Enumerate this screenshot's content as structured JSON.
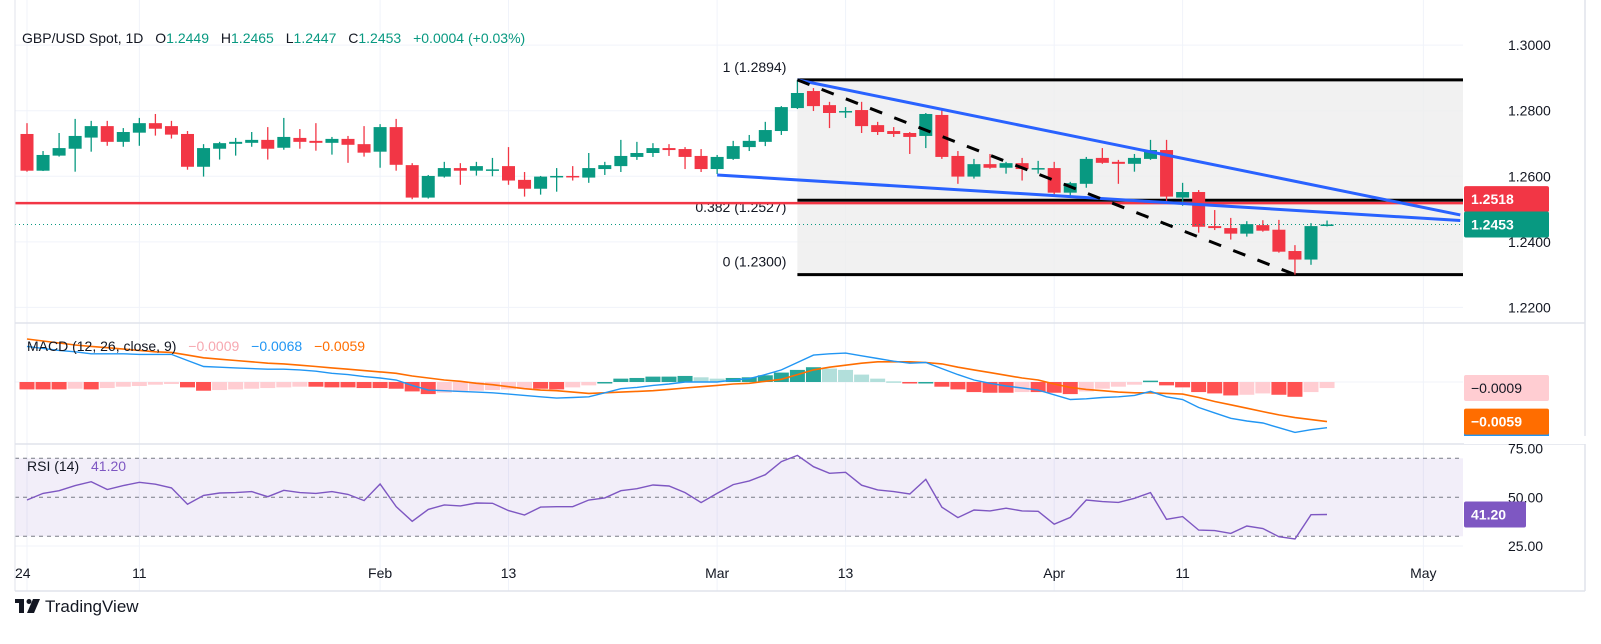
{
  "header": {
    "symbol": "GBP/USD Spot, 1D",
    "o_label": "O",
    "o": "1.2449",
    "h_label": "H",
    "h": "1.2465",
    "l_label": "L",
    "l": "1.2447",
    "c_label": "C",
    "c": "1.2453",
    "change": "+0.0004 (+0.03%)"
  },
  "colors": {
    "up": "#089981",
    "down": "#F23645",
    "macd": "#2196F3",
    "signal": "#FF6D00",
    "hist_up_strong": "#26A69A",
    "hist_up_weak": "#B2DFDB",
    "hist_down_strong": "#FF5252",
    "hist_down_weak": "#FFCDD2",
    "rsi": "#7E57C2",
    "trendline": "#2962FF",
    "support_line": "#F23645"
  },
  "chart_data": [
    {
      "type": "candlestick",
      "title": "GBP/USD Spot, 1D",
      "y_range": [
        1.22,
        1.3
      ],
      "y_ticks": [
        "1.3000",
        "1.2800",
        "1.2600",
        "1.2400",
        "1.2200"
      ],
      "x_ticks": [
        {
          "label": "24",
          "at_bar": 0
        },
        {
          "label": "11",
          "at_bar": 7
        },
        {
          "label": "Feb",
          "at_bar": 22
        },
        {
          "label": "13",
          "at_bar": 30
        },
        {
          "label": "Mar",
          "at_bar": 43
        },
        {
          "label": "13",
          "at_bar": 51
        },
        {
          "label": "Apr",
          "at_bar": 64
        },
        {
          "label": "11",
          "at_bar": 72
        },
        {
          "label": "May",
          "at_bar": 87
        }
      ],
      "ohlc_columns": [
        "open",
        "high",
        "low",
        "close"
      ],
      "ohlc": [
        [
          1.2729,
          1.2762,
          1.2614,
          1.2617
        ],
        [
          1.2617,
          1.2677,
          1.2616,
          1.2665
        ],
        [
          1.2663,
          1.2732,
          1.266,
          1.2686
        ],
        [
          1.2684,
          1.2775,
          1.2614,
          1.2723
        ],
        [
          1.2718,
          1.2769,
          1.2675,
          1.2753
        ],
        [
          1.2753,
          1.2769,
          1.2693,
          1.2705
        ],
        [
          1.2705,
          1.2747,
          1.269,
          1.2735
        ],
        [
          1.2733,
          1.2778,
          1.2693,
          1.2762
        ],
        [
          1.2762,
          1.279,
          1.2724,
          1.2745
        ],
        [
          1.2753,
          1.2769,
          1.2715,
          1.2727
        ],
        [
          1.2729,
          1.2738,
          1.262,
          1.2629
        ],
        [
          1.2629,
          1.2698,
          1.2599,
          1.2686
        ],
        [
          1.2684,
          1.2705,
          1.2651,
          1.2701
        ],
        [
          1.2699,
          1.2717,
          1.2663,
          1.2705
        ],
        [
          1.2702,
          1.2735,
          1.269,
          1.2711
        ],
        [
          1.2711,
          1.275,
          1.2651,
          1.2684
        ],
        [
          1.2687,
          1.2778,
          1.2681,
          1.272
        ],
        [
          1.2717,
          1.2744,
          1.2684,
          1.2705
        ],
        [
          1.2708,
          1.2762,
          1.2678,
          1.2702
        ],
        [
          1.2702,
          1.272,
          1.2666,
          1.2714
        ],
        [
          1.2714,
          1.2723,
          1.2641,
          1.2696
        ],
        [
          1.2698,
          1.2753,
          1.266,
          1.2672
        ],
        [
          1.2675,
          1.2759,
          1.2626,
          1.275
        ],
        [
          1.275,
          1.2775,
          1.2617,
          1.2635
        ],
        [
          1.2634,
          1.264,
          1.253,
          1.2535
        ],
        [
          1.2535,
          1.2604,
          1.2532,
          1.2601
        ],
        [
          1.2599,
          1.2644,
          1.2596,
          1.2625
        ],
        [
          1.2625,
          1.264,
          1.2574,
          1.2617
        ],
        [
          1.2617,
          1.2644,
          1.2602,
          1.2631
        ],
        [
          1.2617,
          1.2656,
          1.26,
          1.2621
        ],
        [
          1.2631,
          1.2689,
          1.2574,
          1.2587
        ],
        [
          1.2589,
          1.2613,
          1.2538,
          1.2562
        ],
        [
          1.2562,
          1.2601,
          1.2544,
          1.2599
        ],
        [
          1.2597,
          1.2625,
          1.2553,
          1.2601
        ],
        [
          1.2601,
          1.2631,
          1.2587,
          1.2597
        ],
        [
          1.2596,
          1.2671,
          1.258,
          1.2625
        ],
        [
          1.2622,
          1.2644,
          1.2604,
          1.2634
        ],
        [
          1.2631,
          1.2711,
          1.2613,
          1.2662
        ],
        [
          1.2659,
          1.2705,
          1.265,
          1.2671
        ],
        [
          1.2671,
          1.2701,
          1.2659,
          1.2686
        ],
        [
          1.2686,
          1.2698,
          1.2662,
          1.268
        ],
        [
          1.2683,
          1.2689,
          1.2622,
          1.2659
        ],
        [
          1.2662,
          1.2683,
          1.2613,
          1.2622
        ],
        [
          1.2622,
          1.2665,
          1.2607,
          1.2659
        ],
        [
          1.2653,
          1.2708,
          1.265,
          1.2692
        ],
        [
          1.2689,
          1.2726,
          1.2677,
          1.2708
        ],
        [
          1.2705,
          1.2766,
          1.2692,
          1.2741
        ],
        [
          1.2738,
          1.2814,
          1.2726,
          1.2811
        ],
        [
          1.2808,
          1.2894,
          1.2805,
          1.2854
        ],
        [
          1.286,
          1.2869,
          1.2799,
          1.2814
        ],
        [
          1.2817,
          1.2827,
          1.2747,
          1.2793
        ],
        [
          1.2796,
          1.2811,
          1.2778,
          1.2799
        ],
        [
          1.2802,
          1.2827,
          1.2732,
          1.2753
        ],
        [
          1.2756,
          1.2766,
          1.2726,
          1.2735
        ],
        [
          1.2738,
          1.275,
          1.272,
          1.2729
        ],
        [
          1.2732,
          1.2735,
          1.2668,
          1.272
        ],
        [
          1.2723,
          1.2793,
          1.2686,
          1.279
        ],
        [
          1.2787,
          1.2805,
          1.2653,
          1.2659
        ],
        [
          1.2662,
          1.2677,
          1.2577,
          1.2599
        ],
        [
          1.2599,
          1.2653,
          1.2593,
          1.2637
        ],
        [
          1.2637,
          1.2668,
          1.2623,
          1.2626
        ],
        [
          1.2626,
          1.2644,
          1.2608,
          1.264
        ],
        [
          1.264,
          1.2656,
          1.2587,
          1.2622
        ],
        [
          1.2622,
          1.2647,
          1.2608,
          1.2625
        ],
        [
          1.2625,
          1.2644,
          1.2538,
          1.255
        ],
        [
          1.255,
          1.2583,
          1.2541,
          1.2579
        ],
        [
          1.2577,
          1.2659,
          1.2565,
          1.2653
        ],
        [
          1.2656,
          1.2686,
          1.2638,
          1.2641
        ],
        [
          1.2644,
          1.265,
          1.2577,
          1.2638
        ],
        [
          1.2638,
          1.2668,
          1.2614,
          1.2656
        ],
        [
          1.2653,
          1.2711,
          1.265,
          1.268
        ],
        [
          1.268,
          1.2711,
          1.2522,
          1.2538
        ],
        [
          1.2535,
          1.258,
          1.251,
          1.2552
        ],
        [
          1.2552,
          1.2558,
          1.2428,
          1.2446
        ],
        [
          1.2448,
          1.2497,
          1.2436,
          1.2442
        ],
        [
          1.2442,
          1.2473,
          1.2407,
          1.2425
        ],
        [
          1.2425,
          1.2463,
          1.2416,
          1.2454
        ],
        [
          1.2451,
          1.2466,
          1.2431,
          1.2434
        ],
        [
          1.2437,
          1.2467,
          1.2367,
          1.237
        ],
        [
          1.2372,
          1.239,
          1.23,
          1.2346
        ],
        [
          1.2346,
          1.2457,
          1.233,
          1.2448
        ],
        [
          1.2449,
          1.2465,
          1.2447,
          1.2453
        ]
      ],
      "fibonacci": {
        "start_bar": 48,
        "levels": [
          {
            "ratio": "1",
            "price": 1.2894,
            "label": "1 (1.2894)"
          },
          {
            "ratio": "0.382",
            "price": 1.2527,
            "label": "0.382 (1.2527)"
          },
          {
            "ratio": "0",
            "price": 1.23,
            "label": "0 (1.2300)"
          }
        ]
      },
      "horizontal_line": {
        "price": 1.2518,
        "label": "1.2518"
      },
      "last_price": {
        "price": 1.2453,
        "label": "1.2453"
      },
      "trendlines": [
        {
          "name": "upper",
          "style": "solid",
          "from": [
            48,
            1.2894
          ],
          "to": [
            89.3,
            1.2482
          ]
        },
        {
          "name": "lower",
          "style": "solid",
          "from": [
            43,
            1.2604
          ],
          "to": [
            89.3,
            1.2465
          ]
        },
        {
          "name": "decline",
          "style": "dashed",
          "from": [
            48,
            1.2894
          ],
          "to": [
            79,
            1.23
          ]
        }
      ]
    },
    {
      "type": "line",
      "title": "MACD (12, 26, close, 9)",
      "legend_values": {
        "histogram": "−0.0009",
        "macd": "−0.0068",
        "signal": "−0.0059"
      },
      "tags": {
        "histogram": "−0.0009",
        "signal": "−0.0059"
      },
      "macd": [
        0.0053,
        0.005,
        0.0047,
        0.0045,
        0.0042,
        0.0042,
        0.0042,
        0.0041,
        0.0041,
        0.0041,
        0.0032,
        0.0023,
        0.0022,
        0.0021,
        0.002,
        0.0019,
        0.0019,
        0.0018,
        0.0016,
        0.0013,
        0.0011,
        0.0008,
        0.0006,
        0.0003,
        -0.0005,
        -0.0012,
        -0.0013,
        -0.0014,
        -0.0015,
        -0.0016,
        -0.0018,
        -0.002,
        -0.0022,
        -0.0024,
        -0.0023,
        -0.0022,
        -0.0016,
        -0.001,
        -0.0008,
        -0.0005,
        -0.0003,
        0.0,
        0.0,
        0.0,
        0.0003,
        0.0005,
        0.0011,
        0.0018,
        0.0029,
        0.004,
        0.0042,
        0.0043,
        0.0039,
        0.0035,
        0.0031,
        0.0028,
        0.0029,
        0.002,
        0.0011,
        0.0003,
        -0.0002,
        -0.0006,
        -0.0009,
        -0.0012,
        -0.0019,
        -0.0026,
        -0.0025,
        -0.0023,
        -0.0022,
        -0.002,
        -0.0014,
        -0.0022,
        -0.0026,
        -0.0038,
        -0.0046,
        -0.0054,
        -0.0058,
        -0.0061,
        -0.0068,
        -0.0075,
        -0.0071,
        -0.0068
      ],
      "signal": [
        0.0064,
        0.0061,
        0.0058,
        0.0055,
        0.0053,
        0.0051,
        0.0049,
        0.0047,
        0.0045,
        0.0044,
        0.004,
        0.0036,
        0.0034,
        0.0032,
        0.003,
        0.0028,
        0.0027,
        0.0025,
        0.0023,
        0.0021,
        0.0019,
        0.0017,
        0.0015,
        0.0013,
        0.0009,
        0.0006,
        0.0003,
        0.0001,
        -0.0002,
        -0.0004,
        -0.0007,
        -0.001,
        -0.0012,
        -0.0013,
        -0.0015,
        -0.0017,
        -0.0016,
        -0.0015,
        -0.0014,
        -0.0013,
        -0.0011,
        -0.0009,
        -0.0007,
        -0.0005,
        -0.0003,
        -0.0002,
        0.0001,
        0.0004,
        0.0011,
        0.0018,
        0.0022,
        0.0025,
        0.0028,
        0.003,
        0.003,
        0.003,
        0.0029,
        0.0027,
        0.0022,
        0.0018,
        0.0014,
        0.001,
        0.0006,
        0.0003,
        -0.0003,
        -0.0008,
        -0.0011,
        -0.0013,
        -0.0015,
        -0.0016,
        -0.0016,
        -0.0017,
        -0.0018,
        -0.0023,
        -0.0029,
        -0.0034,
        -0.0039,
        -0.0044,
        -0.0049,
        -0.0053,
        -0.0056,
        -0.0059
      ],
      "histogram": [
        -0.0011,
        -0.0011,
        -0.0011,
        -0.001,
        -0.0011,
        -0.0009,
        -0.0007,
        -0.0006,
        -0.0004,
        -0.0003,
        -0.0008,
        -0.0013,
        -0.0012,
        -0.0011,
        -0.001,
        -0.0009,
        -0.0008,
        -0.0007,
        -0.0007,
        -0.0008,
        -0.0008,
        -0.0009,
        -0.0009,
        -0.001,
        -0.0014,
        -0.0018,
        -0.0016,
        -0.0015,
        -0.0013,
        -0.0012,
        -0.0011,
        -0.001,
        -0.001,
        -0.0011,
        -0.0008,
        -0.0005,
        0.0,
        0.0005,
        0.0006,
        0.0008,
        0.0008,
        0.0009,
        0.0007,
        0.0005,
        0.0006,
        0.0007,
        0.001,
        0.0014,
        0.0018,
        0.0022,
        0.002,
        0.0018,
        0.0011,
        0.0005,
        0.0001,
        -0.0002,
        0.0,
        -0.0007,
        -0.0011,
        -0.0015,
        -0.0016,
        -0.0016,
        -0.0015,
        -0.0015,
        -0.0016,
        -0.0018,
        -0.0014,
        -0.001,
        -0.0007,
        -0.0004,
        0.0002,
        -0.0005,
        -0.0008,
        -0.0015,
        -0.0017,
        -0.002,
        -0.0019,
        -0.0017,
        -0.0019,
        -0.0022,
        -0.0015,
        -0.0009
      ]
    },
    {
      "type": "line",
      "title": "RSI (14)",
      "legend_value": "41.20",
      "tag": "41.20",
      "y_ticks": [
        "75.00",
        "50.00",
        "25.00"
      ],
      "bands": [
        70,
        50,
        30
      ],
      "values": [
        48.6,
        52.0,
        53.4,
        56.0,
        58.0,
        54.0,
        56.0,
        57.7,
        56.7,
        54.8,
        46.4,
        51.0,
        52.2,
        52.4,
        52.9,
        50.3,
        53.6,
        52.4,
        52.0,
        52.9,
        51.5,
        48.3,
        56.8,
        45.2,
        37.7,
        43.8,
        46.1,
        45.6,
        47.1,
        46.9,
        43.2,
        40.9,
        45.0,
        45.2,
        45.2,
        48.6,
        49.7,
        53.4,
        54.4,
        56.3,
        55.8,
        52.4,
        47.3,
        52.0,
        56.5,
        58.4,
        61.6,
        68.3,
        71.5,
        65.7,
        62.3,
        62.8,
        56.2,
        53.8,
        52.9,
        51.7,
        59.2,
        44.9,
        39.6,
        43.5,
        43.0,
        44.4,
        43.0,
        42.8,
        36.2,
        39.7,
        48.6,
        47.8,
        47.4,
        49.5,
        52.4,
        38.7,
        40.1,
        33.2,
        32.9,
        31.5,
        35.3,
        34.0,
        29.8,
        28.6,
        41.1,
        41.2
      ]
    }
  ],
  "branding": {
    "logo_text": "TradingView"
  }
}
